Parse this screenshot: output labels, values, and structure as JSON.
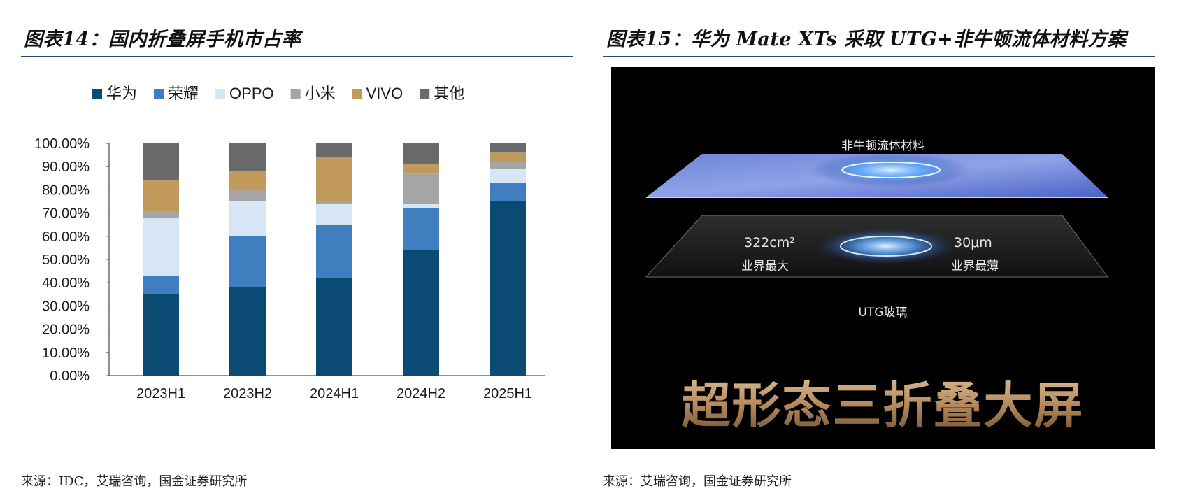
{
  "left_figure": {
    "title": "图表14：国内折叠屏手机市占率",
    "source": "来源：IDC，艾瑞咨询，国金证券研究所"
  },
  "right_figure": {
    "title": "图表15：华为 Mate XTs 采取 UTG+非牛顿流体材料方案",
    "source": "来源：艾瑞咨询，国金证券研究所",
    "layer_top_label": "非牛顿流体材料",
    "area_value": "322cm²",
    "area_caption": "业界最大",
    "thickness_value": "30μm",
    "thickness_caption": "业界最薄",
    "layer_bottom_label": "UTG玻璃",
    "slogan": "超形态三折叠大屏"
  },
  "chart_data": {
    "type": "bar",
    "stacked": true,
    "categories": [
      "2023H1",
      "2023H2",
      "2024H1",
      "2024H2",
      "2025H1"
    ],
    "y_tick_labels": [
      "100.00%",
      "90.00%",
      "80.00%",
      "70.00%",
      "60.00%",
      "50.00%",
      "40.00%",
      "30.00%",
      "20.00%",
      "10.00%",
      "0.00%"
    ],
    "ylim": [
      0,
      100
    ],
    "legend_position": "top",
    "grid": false,
    "series": [
      {
        "name": "华为",
        "color": "#0b4a72",
        "values": [
          35,
          38,
          42,
          54,
          75
        ]
      },
      {
        "name": "荣耀",
        "color": "#3f7fc0",
        "values": [
          8,
          22,
          23,
          18,
          8
        ]
      },
      {
        "name": "OPPO",
        "color": "#d6e6f4",
        "values": [
          25,
          15,
          9,
          2,
          6
        ]
      },
      {
        "name": "小米",
        "color": "#a5a5a5",
        "values": [
          3,
          5,
          1,
          13,
          3
        ]
      },
      {
        "name": "VIVO",
        "color": "#c19a5b",
        "values": [
          13,
          8,
          19,
          4,
          4
        ]
      },
      {
        "name": "其他",
        "color": "#6a6a6a",
        "values": [
          16,
          12,
          6,
          9,
          4
        ]
      }
    ]
  }
}
